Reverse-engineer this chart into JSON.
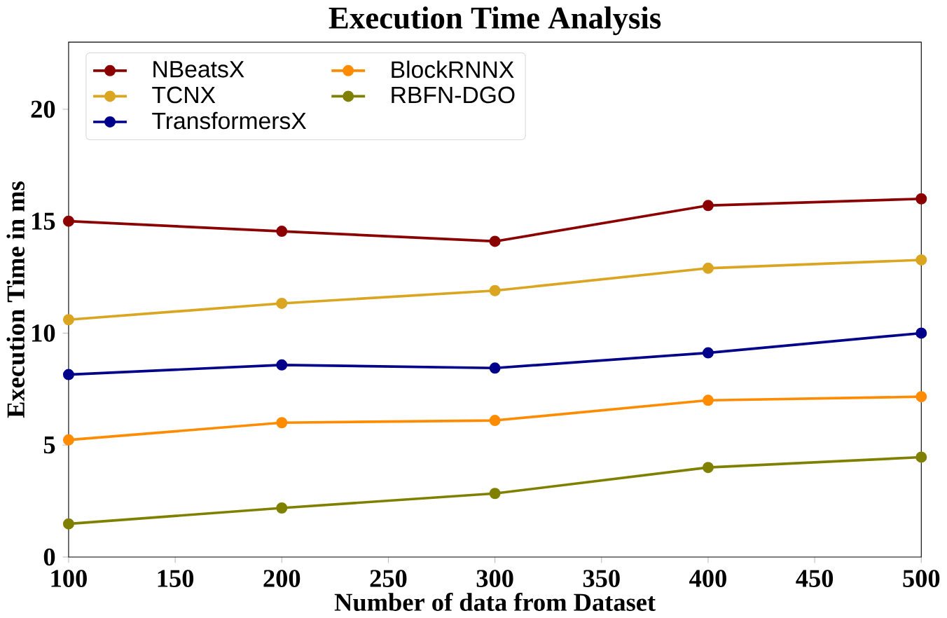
{
  "chart_data": {
    "type": "line",
    "title": "Execution Time Analysis",
    "xlabel": "Number of data from Dataset",
    "ylabel": "Execution Time in ms",
    "x": [
      100,
      200,
      300,
      400,
      500
    ],
    "series": [
      {
        "name": "NBeatsX",
        "color": "#8b0000",
        "values": [
          15.0,
          14.55,
          14.1,
          15.7,
          16.0
        ]
      },
      {
        "name": "TCNX",
        "color": "#daa520",
        "values": [
          10.6,
          11.33,
          11.9,
          12.9,
          13.27
        ]
      },
      {
        "name": "TransformersX",
        "color": "#00008b",
        "values": [
          8.15,
          8.58,
          8.44,
          9.12,
          10.0
        ]
      },
      {
        "name": "BlockRNNX",
        "color": "#ff8c00",
        "values": [
          5.23,
          6.0,
          6.1,
          7.0,
          7.16
        ]
      },
      {
        "name": "RBFN-DGO",
        "color": "#808000",
        "values": [
          1.48,
          2.19,
          2.84,
          4.0,
          4.46
        ]
      }
    ],
    "xlim": [
      100,
      500
    ],
    "ylim": [
      0,
      23
    ],
    "xticks": [
      100,
      150,
      200,
      250,
      300,
      350,
      400,
      450,
      500
    ],
    "yticks": [
      0,
      5,
      10,
      15,
      20
    ],
    "marker": "circle",
    "line_style": "solid",
    "legend": "top left",
    "grid": false
  }
}
